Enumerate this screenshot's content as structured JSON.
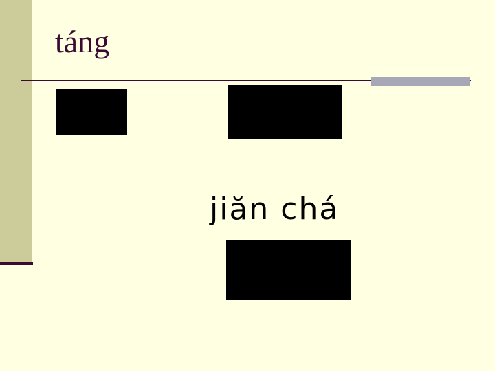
{
  "slide": {
    "title": "táng",
    "pinyin": "jiăn chá"
  },
  "colors": {
    "background": "#ffffe2",
    "sidebar": "#cccc9a",
    "accent": "#3a0a32",
    "rule_highlight": "#a7a7b7",
    "image_placeholder": "#000000"
  }
}
